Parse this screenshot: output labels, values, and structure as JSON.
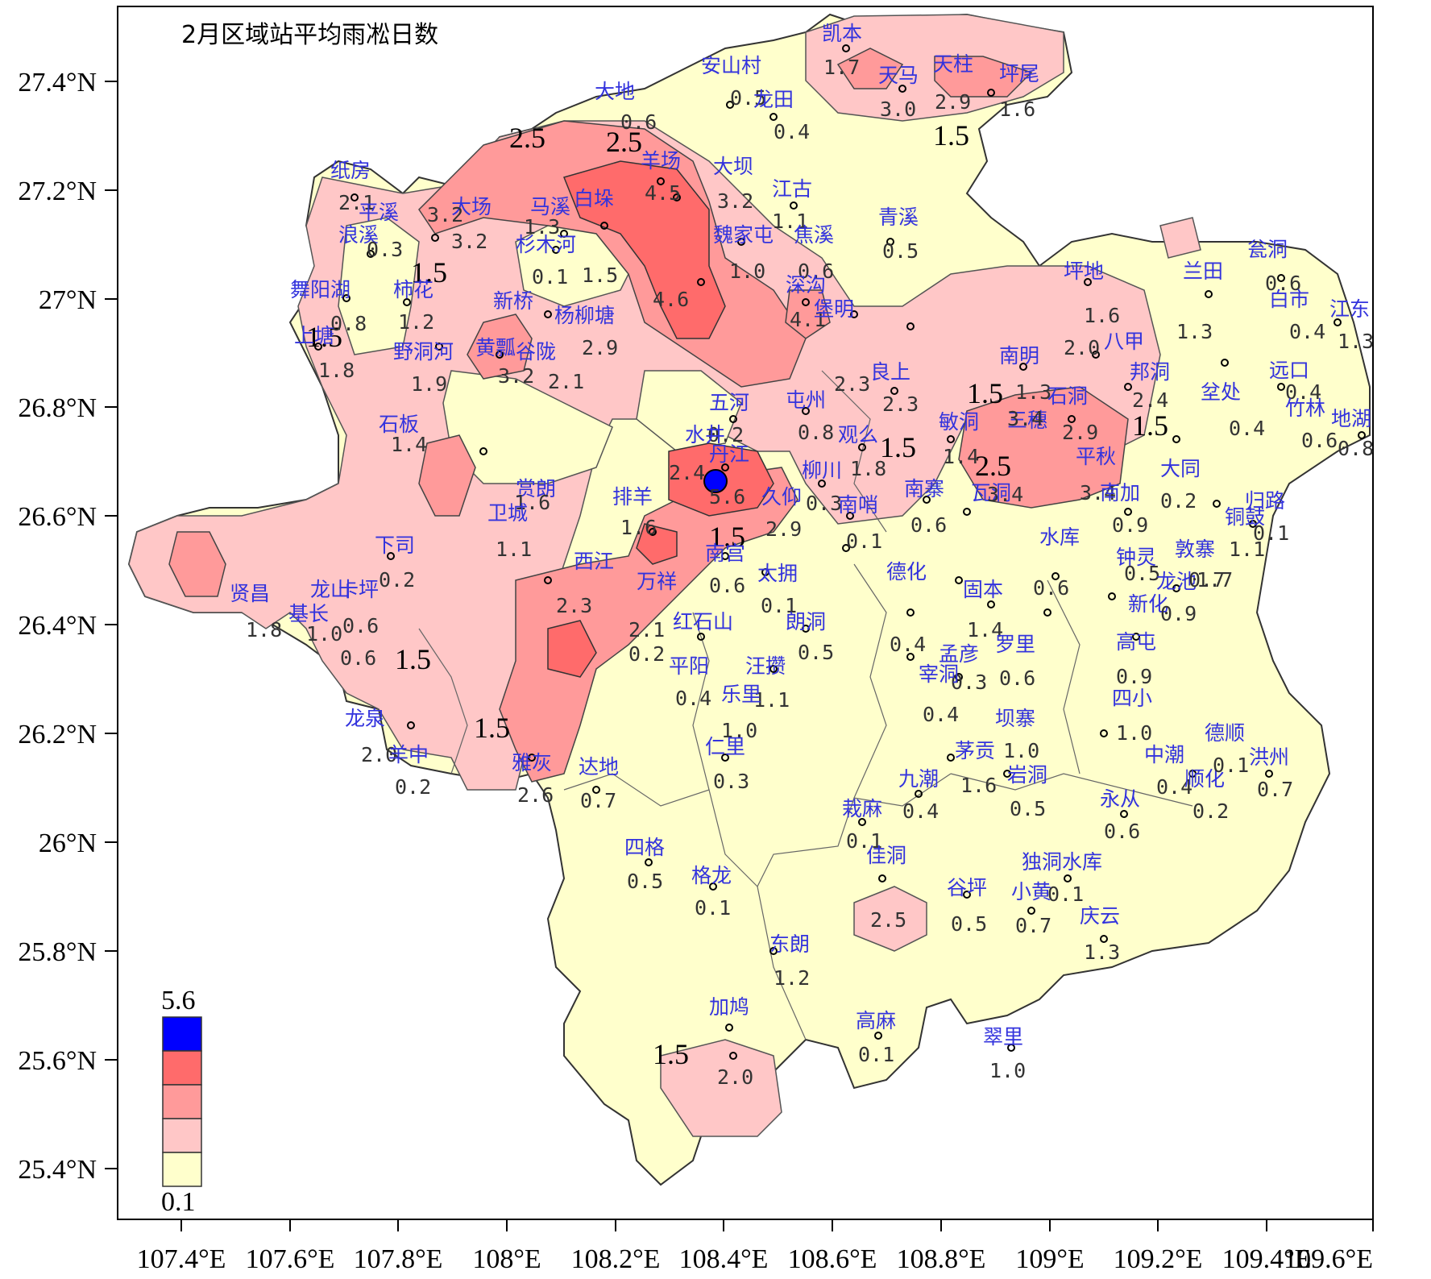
{
  "map": {
    "title": "2月区域站平均雨凇日数",
    "x_ticks": [
      "107.4°E",
      "107.6°E",
      "107.8°E",
      "108°E",
      "108.2°E",
      "108.4°E",
      "108.6°E",
      "108.8°E",
      "109°E",
      "109.2°E",
      "109.4°E",
      "109.6°E"
    ],
    "y_ticks": [
      "27.4°N",
      "27.2°N",
      "27°N",
      "26.8°N",
      "26.6°N",
      "26.4°N",
      "26.2°N",
      "26°N",
      "25.8°N",
      "25.6°N",
      "25.4°N"
    ],
    "legend": {
      "max_label": "5.6",
      "min_label": "0.1",
      "colors": [
        "#0000ff",
        "#ff6b6b",
        "#ff9a9a",
        "#ffc7c7",
        "#ffffcc"
      ]
    },
    "contour_labels": [
      "2.5",
      "2.5",
      "1.5",
      "1.5",
      "1.5",
      "1.5",
      "1.5",
      "1.5",
      "2.5",
      "1.5",
      "1.5",
      "1.5",
      "1.5"
    ],
    "stations": [
      {
        "name": "凯本",
        "value": "1.7"
      },
      {
        "name": "天马",
        "value": "3.0"
      },
      {
        "name": "天柱",
        "value": "2.9"
      },
      {
        "name": "坪尾",
        "value": "1.6"
      },
      {
        "name": "安山村",
        "value": "0.5"
      },
      {
        "name": "龙田",
        "value": "0.4"
      },
      {
        "name": "大地",
        "value": "0.6"
      },
      {
        "name": "羊场",
        "value": "4.5"
      },
      {
        "name": "大坝",
        "value": "3.2"
      },
      {
        "name": "江古",
        "value": "1.1"
      },
      {
        "name": "纸房",
        "value": "2.1"
      },
      {
        "name": "平溪",
        "value": "3.2"
      },
      {
        "name": "大场",
        "value": "3.2"
      },
      {
        "name": "马溪",
        "value": "1.3"
      },
      {
        "name": "白垛",
        "value": "4.6"
      },
      {
        "name": "魏家屯",
        "value": "1.0"
      },
      {
        "name": "焦溪",
        "value": "0.6"
      },
      {
        "name": "青溪",
        "value": "0.5"
      },
      {
        "name": "浪溪",
        "value": "0.3"
      },
      {
        "name": "杉木河",
        "value": "0.1"
      },
      {
        "name": "舞阳湖",
        "value": "0.8"
      },
      {
        "name": "柿花",
        "value": "1.2"
      },
      {
        "name": "新桥",
        "value": "1.5"
      },
      {
        "name": "杨柳塘",
        "value": "2.9"
      },
      {
        "name": "深沟",
        "value": "4.1"
      },
      {
        "name": "堡明",
        "value": "2.3"
      },
      {
        "name": "坪地",
        "value": "1.6"
      },
      {
        "name": "兰田",
        "value": "1.3"
      },
      {
        "name": "瓮洞",
        "value": "0.6"
      },
      {
        "name": "白市",
        "value": "0.4"
      },
      {
        "name": "江东",
        "value": "1.3"
      },
      {
        "name": "上塘",
        "value": "1.8"
      },
      {
        "name": "野洞河",
        "value": "1.9"
      },
      {
        "name": "黄瓢",
        "value": "3.2"
      },
      {
        "name": "谷陇",
        "value": "2.1"
      },
      {
        "name": "南明",
        "value": "1.3"
      },
      {
        "name": "八甲",
        "value": "2.0"
      },
      {
        "name": "远口",
        "value": "0.4"
      },
      {
        "name": "良上",
        "value": "2.3"
      },
      {
        "name": "石洞",
        "value": "2.9"
      },
      {
        "name": "邦洞",
        "value": "2.4"
      },
      {
        "name": "坌处",
        "value": "0.4"
      },
      {
        "name": "竹林",
        "value": "0.6"
      },
      {
        "name": "地湖",
        "value": "0.8"
      },
      {
        "name": "五河",
        "value": "0.2"
      },
      {
        "name": "屯州",
        "value": "0.8"
      },
      {
        "name": "观么",
        "value": "1.8"
      },
      {
        "name": "敏洞",
        "value": "1.4"
      },
      {
        "name": "三穗",
        "value": "3.4"
      },
      {
        "name": "平秋",
        "value": "3.4"
      },
      {
        "name": "大同",
        "value": "0.2"
      },
      {
        "name": "石板",
        "value": "1.4"
      },
      {
        "name": "水井",
        "value": "2.4"
      },
      {
        "name": "丹江",
        "value": "5.6"
      },
      {
        "name": "柳川",
        "value": "0.3"
      },
      {
        "name": "南寨",
        "value": "0.6"
      },
      {
        "name": "南加",
        "value": "0.9"
      },
      {
        "name": "归路",
        "value": "0.1"
      },
      {
        "name": "久仰",
        "value": "2.9"
      },
      {
        "name": "南哨",
        "value": "0.1"
      },
      {
        "name": "瓦洞",
        "value": "3.4"
      },
      {
        "name": "钟灵",
        "value": "0.5"
      },
      {
        "name": "铜鼓",
        "value": "1.1"
      },
      {
        "name": "敦寨",
        "value": "1.7"
      },
      {
        "name": "赏朗",
        "value": "1.6"
      },
      {
        "name": "卫城",
        "value": "1.1"
      },
      {
        "name": "排羊",
        "value": "1.6"
      },
      {
        "name": "南宫",
        "value": "0.6"
      },
      {
        "name": "太拥",
        "value": "0.1"
      },
      {
        "name": "德化",
        "value": "0.4"
      },
      {
        "name": "固本",
        "value": "1.4"
      },
      {
        "name": "水库",
        "value": "0.6"
      },
      {
        "name": "龙池",
        "value": "0.7"
      },
      {
        "name": "新化",
        "value": "0.9"
      },
      {
        "name": "下司",
        "value": "0.2"
      },
      {
        "name": "龙山",
        "value": "1.0"
      },
      {
        "name": "卡坪",
        "value": "0.6"
      },
      {
        "name": "基长",
        "value": "0.6"
      },
      {
        "name": "贤昌",
        "value": "1.8"
      },
      {
        "name": "西江",
        "value": "2.3"
      },
      {
        "name": "万祥",
        "value": "2.1"
      },
      {
        "name": "红石山",
        "value": "0.2"
      },
      {
        "name": "朗洞",
        "value": "0.5"
      },
      {
        "name": "平阳",
        "value": "0.4"
      },
      {
        "name": "汪攒",
        "value": "1.1"
      },
      {
        "name": "高屯",
        "value": "0.9"
      },
      {
        "name": "罗里",
        "value": "0.6"
      },
      {
        "name": "孟彦",
        "value": "0.3"
      },
      {
        "name": "宰洞",
        "value": "0.4"
      },
      {
        "name": "乐里",
        "value": "1.0"
      },
      {
        "name": "坝寨",
        "value": "1.0"
      },
      {
        "name": "四小",
        "value": "1.0"
      },
      {
        "name": "龙泉",
        "value": "2.0"
      },
      {
        "name": "羊中",
        "value": "0.2"
      },
      {
        "name": "雅灰",
        "value": "2.6"
      },
      {
        "name": "达地",
        "value": "0.7"
      },
      {
        "name": "仁里",
        "value": "0.3"
      },
      {
        "name": "茅贡",
        "value": "1.6"
      },
      {
        "name": "岩洞",
        "value": "0.5"
      },
      {
        "name": "九潮",
        "value": "0.4"
      },
      {
        "name": "中潮",
        "value": "0.4"
      },
      {
        "name": "顺化",
        "value": "0.2"
      },
      {
        "name": "德顺",
        "value": "0.1"
      },
      {
        "name": "洪州",
        "value": "0.7"
      },
      {
        "name": "永从",
        "value": "0.6"
      },
      {
        "name": "栽麻",
        "value": "0.1"
      },
      {
        "name": "四格",
        "value": "0.5"
      },
      {
        "name": "格龙",
        "value": "0.1"
      },
      {
        "name": "佳洞",
        "value": "2.5"
      },
      {
        "name": "谷坪",
        "value": "0.5"
      },
      {
        "name": "独洞水库",
        "value": "0.1"
      },
      {
        "name": "小黄",
        "value": "0.7"
      },
      {
        "name": "庆云",
        "value": "1.3"
      },
      {
        "name": "东朗",
        "value": "1.2"
      },
      {
        "name": "加鸠",
        "value": "2.0"
      },
      {
        "name": "高麻",
        "value": "0.1"
      },
      {
        "name": "翠里",
        "value": "1.0"
      }
    ]
  }
}
